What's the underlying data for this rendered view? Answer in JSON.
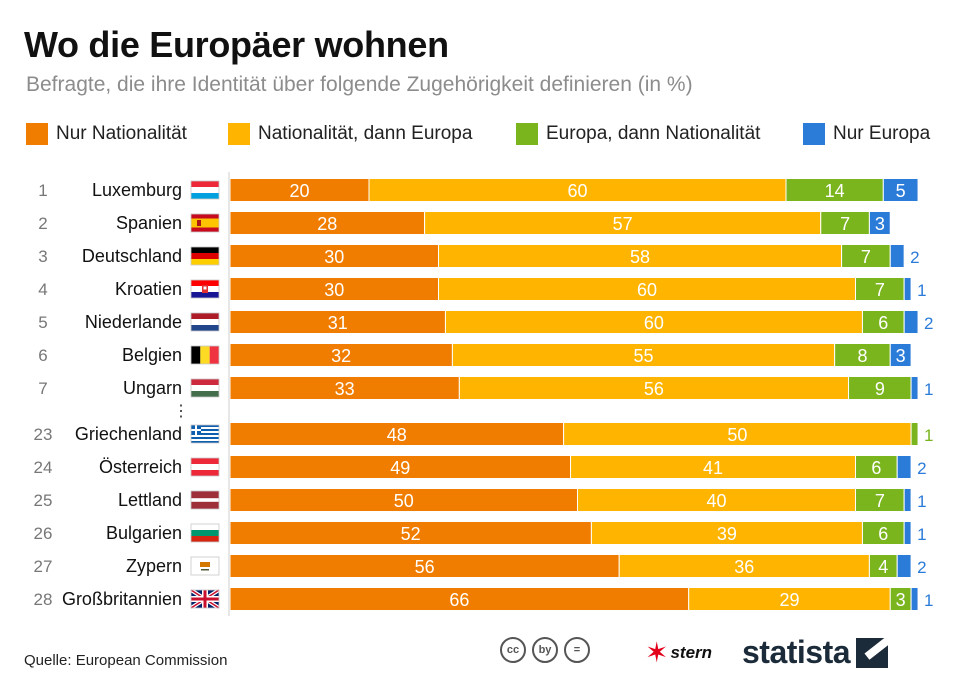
{
  "title": "Wo die Europäer wohnen",
  "subtitle": "Befragte, die ihre Identität über folgende Zugehörigkeit definieren (in %)",
  "legend": [
    {
      "label": "Nur Nationalität",
      "color": "#f07d00"
    },
    {
      "label": "Nationalität, dann Europa",
      "color": "#ffb400"
    },
    {
      "label": "Europa, dann Nationalität",
      "color": "#7ab51d"
    },
    {
      "label": "Nur Europa",
      "color": "#2b7bd9"
    }
  ],
  "ellipsis": "⋮",
  "source": "Quelle: European Commission",
  "brand": {
    "stern": "stern",
    "statista": "statista",
    "cc_icons": [
      "cc",
      "by",
      "="
    ]
  },
  "chart_data": {
    "type": "bar",
    "orientation": "horizontal",
    "stacked": true,
    "categories": [
      "Luxemburg",
      "Spanien",
      "Deutschland",
      "Kroatien",
      "Niederlande",
      "Belgien",
      "Ungarn",
      "Griechenland",
      "Österreich",
      "Lettland",
      "Bulgarien",
      "Zypern",
      "Großbritannien"
    ],
    "ranks": [
      "1",
      "2",
      "3",
      "4",
      "5",
      "6",
      "7",
      "23",
      "24",
      "25",
      "26",
      "27",
      "28"
    ],
    "flags": [
      "luxembourg-flag",
      "spain-flag",
      "germany-flag",
      "croatia-flag",
      "netherlands-flag",
      "belgium-flag",
      "hungary-flag",
      "greece-flag",
      "austria-flag",
      "latvia-flag",
      "bulgaria-flag",
      "cyprus-flag",
      "uk-flag"
    ],
    "series": [
      {
        "name": "Nur Nationalität",
        "color": "#f07d00",
        "values": [
          20,
          28,
          30,
          30,
          31,
          32,
          33,
          48,
          49,
          50,
          52,
          56,
          66
        ]
      },
      {
        "name": "Nationalität, dann Europa",
        "color": "#ffb400",
        "values": [
          60,
          57,
          58,
          60,
          60,
          55,
          56,
          50,
          41,
          40,
          39,
          36,
          29
        ]
      },
      {
        "name": "Europa, dann Nationalität",
        "color": "#7ab51d",
        "values": [
          14,
          7,
          7,
          7,
          6,
          8,
          9,
          1,
          6,
          7,
          6,
          4,
          3
        ]
      },
      {
        "name": "Nur Europa",
        "color": "#2b7bd9",
        "values": [
          5,
          3,
          2,
          1,
          2,
          3,
          1,
          0,
          2,
          1,
          1,
          2,
          1
        ]
      }
    ],
    "xlim": [
      0,
      100
    ]
  }
}
